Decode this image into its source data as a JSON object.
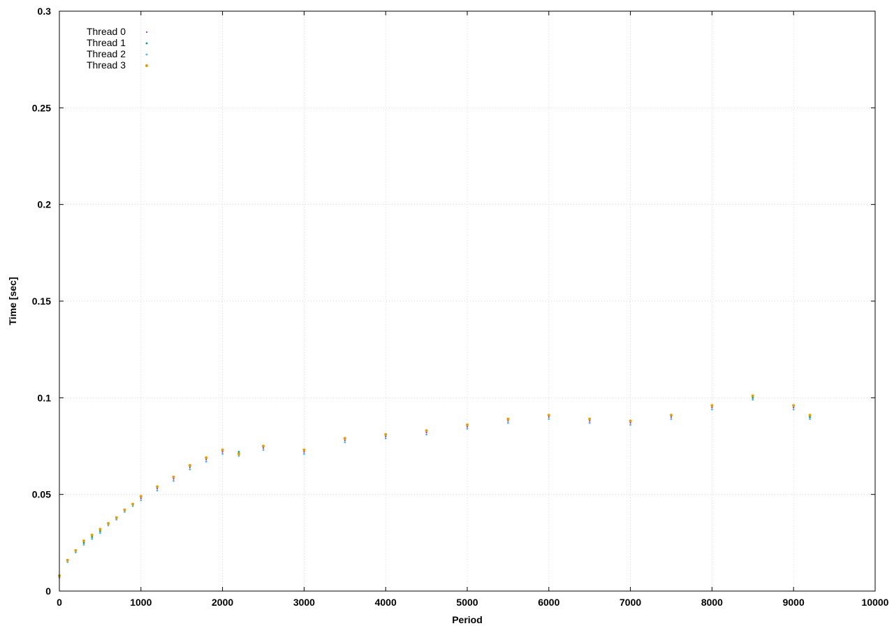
{
  "chart_data": {
    "type": "scatter",
    "title": "",
    "xlabel": "Period",
    "ylabel": "Time [sec]",
    "xlim": [
      0,
      10000
    ],
    "ylim": [
      0,
      0.3
    ],
    "x_ticks": [
      0,
      1000,
      2000,
      3000,
      4000,
      5000,
      6000,
      7000,
      8000,
      9000,
      10000
    ],
    "x_tick_labels": [
      "0",
      "1000",
      "2000",
      "3000",
      "4000",
      "5000",
      "6000",
      "7000",
      "8000",
      "9000",
      "10000"
    ],
    "y_ticks": [
      0,
      0.05,
      0.1,
      0.15,
      0.2,
      0.25,
      0.3
    ],
    "y_tick_labels": [
      "0",
      "0.05",
      "0.1",
      "0.15",
      "0.2",
      "0.25",
      "0.3"
    ],
    "grid": true,
    "legend_position": "top-left",
    "series": [
      {
        "name": "Thread 0",
        "color": "#9400d3",
        "marker_size": 1.0,
        "points": [
          [
            0,
            0.007
          ],
          [
            100,
            0.015
          ],
          [
            200,
            0.02
          ],
          [
            300,
            0.025
          ],
          [
            400,
            0.028
          ],
          [
            500,
            0.031
          ],
          [
            600,
            0.034
          ],
          [
            700,
            0.037
          ],
          [
            800,
            0.041
          ],
          [
            900,
            0.044
          ],
          [
            1000,
            0.048
          ],
          [
            1200,
            0.053
          ],
          [
            1400,
            0.058
          ],
          [
            1600,
            0.064
          ],
          [
            1800,
            0.068
          ],
          [
            2000,
            0.072
          ],
          [
            2200,
            0.07
          ],
          [
            2500,
            0.074
          ],
          [
            3000,
            0.072
          ],
          [
            3500,
            0.078
          ],
          [
            4000,
            0.08
          ],
          [
            4500,
            0.082
          ],
          [
            5000,
            0.085
          ],
          [
            5500,
            0.088
          ],
          [
            6000,
            0.09
          ],
          [
            6500,
            0.088
          ],
          [
            7000,
            0.087
          ],
          [
            7500,
            0.09
          ],
          [
            8000,
            0.095
          ],
          [
            8500,
            0.1
          ],
          [
            9000,
            0.095
          ],
          [
            9200,
            0.09
          ]
        ]
      },
      {
        "name": "Thread 1",
        "color": "#009e73",
        "marker_size": 1.4,
        "points": [
          [
            0,
            0.008
          ],
          [
            100,
            0.016
          ],
          [
            200,
            0.021
          ],
          [
            300,
            0.025
          ],
          [
            400,
            0.028
          ],
          [
            500,
            0.031
          ],
          [
            600,
            0.035
          ],
          [
            700,
            0.038
          ],
          [
            800,
            0.042
          ],
          [
            900,
            0.045
          ],
          [
            1000,
            0.049
          ],
          [
            1200,
            0.054
          ],
          [
            1400,
            0.059
          ],
          [
            1600,
            0.065
          ],
          [
            1800,
            0.069
          ],
          [
            2000,
            0.073
          ],
          [
            2200,
            0.072
          ],
          [
            2500,
            0.075
          ],
          [
            3000,
            0.073
          ],
          [
            3500,
            0.079
          ],
          [
            4000,
            0.081
          ],
          [
            4500,
            0.083
          ],
          [
            5000,
            0.086
          ],
          [
            5500,
            0.089
          ],
          [
            6000,
            0.091
          ],
          [
            6500,
            0.089
          ],
          [
            7000,
            0.088
          ],
          [
            7500,
            0.091
          ],
          [
            8000,
            0.096
          ],
          [
            8500,
            0.1
          ],
          [
            9000,
            0.096
          ],
          [
            9200,
            0.09
          ]
        ]
      },
      {
        "name": "Thread 2",
        "color": "#56b4e9",
        "marker_size": 1.4,
        "points": [
          [
            0,
            0.007
          ],
          [
            100,
            0.015
          ],
          [
            200,
            0.02
          ],
          [
            300,
            0.024
          ],
          [
            400,
            0.027
          ],
          [
            500,
            0.03
          ],
          [
            600,
            0.034
          ],
          [
            700,
            0.037
          ],
          [
            800,
            0.041
          ],
          [
            900,
            0.044
          ],
          [
            1000,
            0.047
          ],
          [
            1200,
            0.052
          ],
          [
            1400,
            0.057
          ],
          [
            1600,
            0.063
          ],
          [
            1800,
            0.067
          ],
          [
            2000,
            0.071
          ],
          [
            2200,
            0.07
          ],
          [
            2500,
            0.073
          ],
          [
            3000,
            0.071
          ],
          [
            3500,
            0.077
          ],
          [
            4000,
            0.079
          ],
          [
            4500,
            0.081
          ],
          [
            5000,
            0.084
          ],
          [
            5500,
            0.087
          ],
          [
            6000,
            0.089
          ],
          [
            6500,
            0.087
          ],
          [
            7000,
            0.086
          ],
          [
            7500,
            0.089
          ],
          [
            8000,
            0.094
          ],
          [
            8500,
            0.099
          ],
          [
            9000,
            0.094
          ],
          [
            9200,
            0.089
          ]
        ]
      },
      {
        "name": "Thread 3",
        "color": "#e69f00",
        "marker_size": 2.0,
        "points": [
          [
            0,
            0.008
          ],
          [
            100,
            0.016
          ],
          [
            200,
            0.021
          ],
          [
            300,
            0.026
          ],
          [
            400,
            0.029
          ],
          [
            500,
            0.032
          ],
          [
            600,
            0.035
          ],
          [
            700,
            0.038
          ],
          [
            800,
            0.042
          ],
          [
            900,
            0.045
          ],
          [
            1000,
            0.049
          ],
          [
            1200,
            0.054
          ],
          [
            1400,
            0.059
          ],
          [
            1600,
            0.065
          ],
          [
            1800,
            0.069
          ],
          [
            2000,
            0.073
          ],
          [
            2200,
            0.071
          ],
          [
            2500,
            0.075
          ],
          [
            3000,
            0.073
          ],
          [
            3500,
            0.079
          ],
          [
            4000,
            0.081
          ],
          [
            4500,
            0.083
          ],
          [
            5000,
            0.086
          ],
          [
            5500,
            0.089
          ],
          [
            6000,
            0.091
          ],
          [
            6500,
            0.089
          ],
          [
            7000,
            0.088
          ],
          [
            7500,
            0.091
          ],
          [
            8000,
            0.096
          ],
          [
            8500,
            0.101
          ],
          [
            9000,
            0.096
          ],
          [
            9200,
            0.091
          ]
        ]
      }
    ]
  }
}
